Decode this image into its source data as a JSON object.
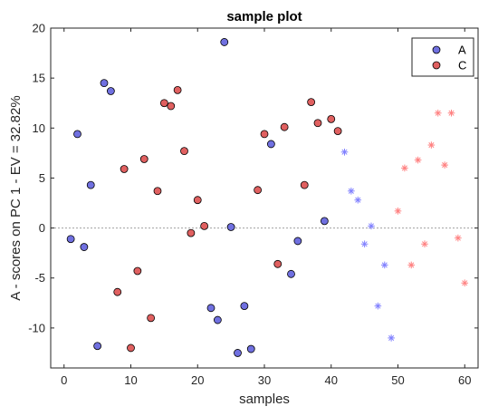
{
  "chart_data": {
    "type": "scatter",
    "title": "sample plot",
    "xlabel": "samples",
    "ylabel": "A - scores on PC 1 - EV = 32.82%",
    "xlim": [
      -2,
      62
    ],
    "ylim": [
      -14,
      20
    ],
    "xticks": [
      0,
      10,
      20,
      30,
      40,
      50,
      60
    ],
    "yticks": [
      -10,
      -5,
      0,
      5,
      10,
      15,
      20
    ],
    "xtick_labels": [
      "0",
      "10",
      "20",
      "30",
      "40",
      "50",
      "60"
    ],
    "ytick_labels": [
      "-10",
      "-5",
      "0",
      "5",
      "10",
      "15",
      "20"
    ],
    "grid": false,
    "zero_line": true,
    "legend_position": "top-right",
    "colors": {
      "A": "#7070e0",
      "C": "#e06060",
      "axis": "#262626",
      "zero_line": "#a0a0a0"
    },
    "series": [
      {
        "name": "A",
        "marker": "circle",
        "points": [
          [
            1,
            -1.1
          ],
          [
            2,
            9.4
          ],
          [
            3,
            -1.9
          ],
          [
            4,
            4.3
          ],
          [
            5,
            -11.8
          ],
          [
            6,
            14.5
          ],
          [
            7,
            13.7
          ],
          [
            22,
            -8.0
          ],
          [
            23,
            -9.2
          ],
          [
            24,
            18.6
          ],
          [
            25,
            0.1
          ],
          [
            26,
            -12.5
          ],
          [
            27,
            -7.8
          ],
          [
            28,
            -12.1
          ],
          [
            31,
            8.4
          ],
          [
            34,
            -4.6
          ],
          [
            35,
            -1.3
          ],
          [
            39,
            0.7
          ]
        ]
      },
      {
        "name": "C",
        "marker": "circle",
        "points": [
          [
            8,
            -6.4
          ],
          [
            9,
            5.9
          ],
          [
            10,
            -12.0
          ],
          [
            11,
            -4.3
          ],
          [
            12,
            6.9
          ],
          [
            13,
            -9.0
          ],
          [
            14,
            3.7
          ],
          [
            15,
            12.5
          ],
          [
            16,
            12.2
          ],
          [
            17,
            13.8
          ],
          [
            18,
            7.7
          ],
          [
            19,
            -0.5
          ],
          [
            20,
            2.8
          ],
          [
            21,
            0.2
          ],
          [
            29,
            3.8
          ],
          [
            30,
            9.4
          ],
          [
            32,
            -3.6
          ],
          [
            33,
            10.1
          ],
          [
            36,
            4.3
          ],
          [
            37,
            12.6
          ],
          [
            38,
            10.5
          ],
          [
            40,
            10.9
          ],
          [
            41,
            9.7
          ]
        ]
      },
      {
        "marker": "asterisk",
        "color": "#8080ff",
        "points": [
          [
            42,
            7.6
          ],
          [
            43,
            3.7
          ],
          [
            44,
            2.8
          ],
          [
            45,
            -1.6
          ],
          [
            46,
            0.2
          ],
          [
            47,
            -7.8
          ],
          [
            48,
            -3.7
          ],
          [
            49,
            -11.0
          ]
        ]
      },
      {
        "marker": "asterisk",
        "color": "#ff8080",
        "points": [
          [
            50,
            1.7
          ],
          [
            51,
            6.0
          ],
          [
            52,
            -3.7
          ],
          [
            53,
            6.8
          ],
          [
            54,
            -1.6
          ],
          [
            55,
            8.3
          ],
          [
            56,
            11.5
          ],
          [
            57,
            6.3
          ],
          [
            58,
            11.5
          ],
          [
            59,
            -1.0
          ],
          [
            60,
            -5.5
          ]
        ]
      }
    ]
  }
}
